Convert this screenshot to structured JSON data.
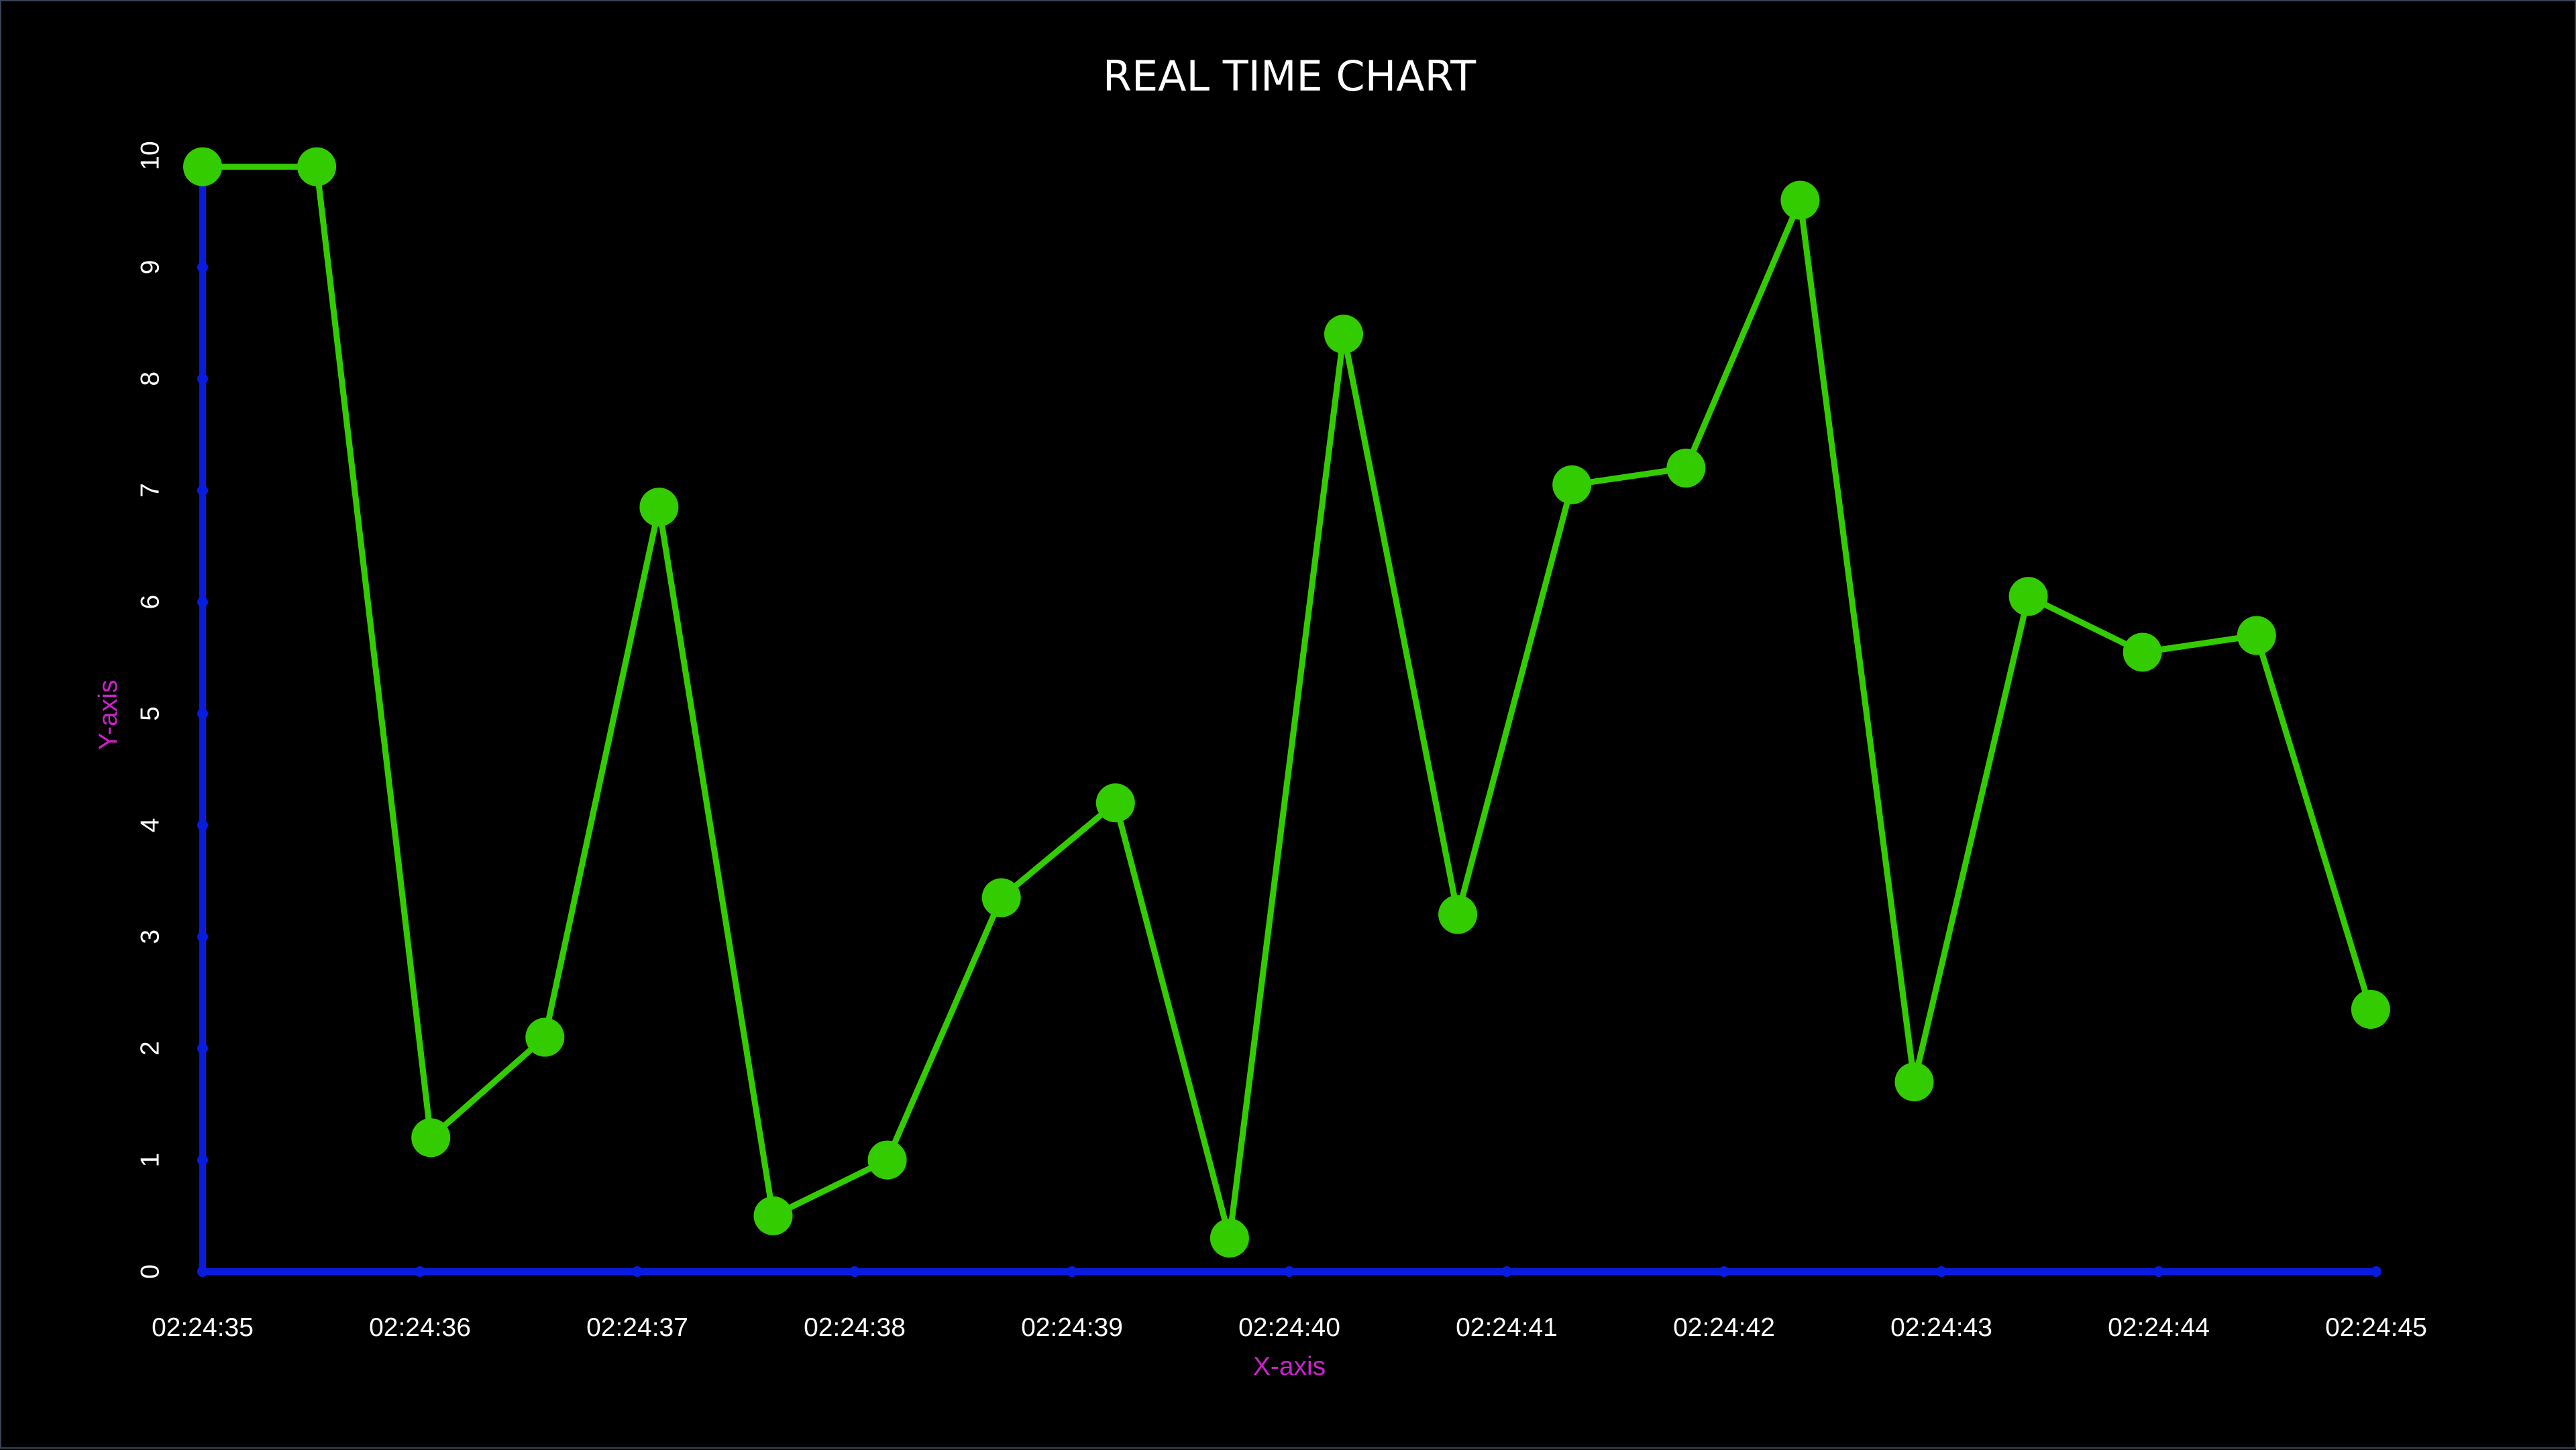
{
  "chart_data": {
    "type": "line",
    "title": "REAL TIME CHART",
    "xlabel": "X-axis",
    "ylabel": "Y-axis",
    "x_ticks": [
      "02:24:35",
      "02:24:36",
      "02:24:37",
      "02:24:38",
      "02:24:39",
      "02:24:40",
      "02:24:41",
      "02:24:42",
      "02:24:43",
      "02:24:44",
      "02:24:45"
    ],
    "y_ticks": [
      0,
      1,
      2,
      3,
      4,
      5,
      6,
      7,
      8,
      9,
      10
    ],
    "xlim": [
      "02:24:35",
      "02:24:45"
    ],
    "ylim": [
      0,
      10
    ],
    "grid": false,
    "legend": "none",
    "series": [
      {
        "x": [
          "02:24:35.000",
          "02:24:35.525",
          "02:24:36.050",
          "02:24:36.575",
          "02:24:37.100",
          "02:24:37.625",
          "02:24:38.150",
          "02:24:38.675",
          "02:24:39.200",
          "02:24:39.725",
          "02:24:40.250",
          "02:24:40.775",
          "02:24:41.300",
          "02:24:41.825",
          "02:24:42.350",
          "02:24:42.875",
          "02:24:43.400",
          "02:24:43.925",
          "02:24:44.450",
          "02:24:44.975"
        ],
        "values": [
          9.9,
          9.9,
          1.2,
          2.1,
          6.85,
          0.5,
          1.0,
          3.35,
          4.2,
          0.3,
          8.4,
          3.2,
          7.05,
          7.2,
          9.6,
          1.7,
          6.05,
          5.55,
          5.7,
          2.35
        ]
      }
    ],
    "colors": {
      "line": "#33cc00",
      "marker": "#33cc00",
      "axis": "#0a1be0",
      "axis_label": "#cc22cc",
      "tick_label": "#ffffff",
      "title": "#ffffff",
      "background": "#000000"
    }
  }
}
